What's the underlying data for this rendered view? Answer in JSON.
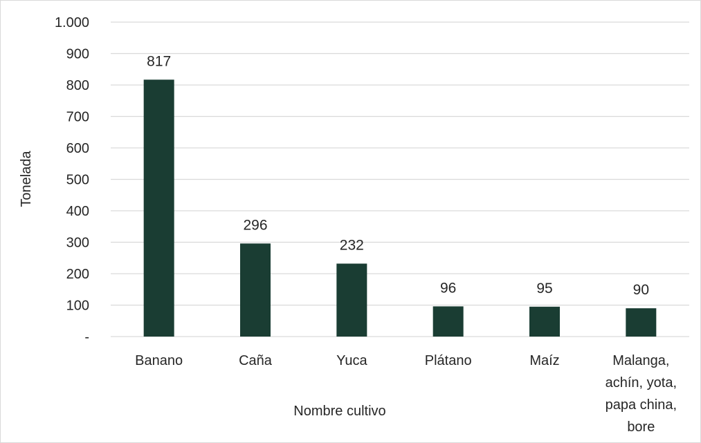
{
  "chart_data": {
    "type": "bar",
    "categories": [
      "Banano",
      "Caña",
      "Yuca",
      "Plátano",
      "Maíz",
      "Malanga, achín, yota, papa china, bore"
    ],
    "category_lines": [
      [
        "Banano"
      ],
      [
        "Caña"
      ],
      [
        "Yuca"
      ],
      [
        "Plátano"
      ],
      [
        "Maíz"
      ],
      [
        "Malanga,",
        "achín, yota,",
        "papa china,",
        "bore"
      ]
    ],
    "values": [
      817,
      296,
      232,
      96,
      95,
      90
    ],
    "data_labels": [
      "817",
      "296",
      "232",
      "96",
      "95",
      "90"
    ],
    "xlabel": "Nombre cultivo",
    "ylabel": "Tonelada",
    "ylim": [
      0,
      1000
    ],
    "yticks": [
      0,
      100,
      200,
      300,
      400,
      500,
      600,
      700,
      800,
      900,
      1000
    ],
    "ytick_labels": [
      "-",
      "100",
      "200",
      "300",
      "400",
      "500",
      "600",
      "700",
      "800",
      "900",
      "1.000"
    ],
    "grid": true,
    "legend": "none",
    "bar_color": "#1a3d33",
    "grid_color": "#d9d9d9"
  }
}
